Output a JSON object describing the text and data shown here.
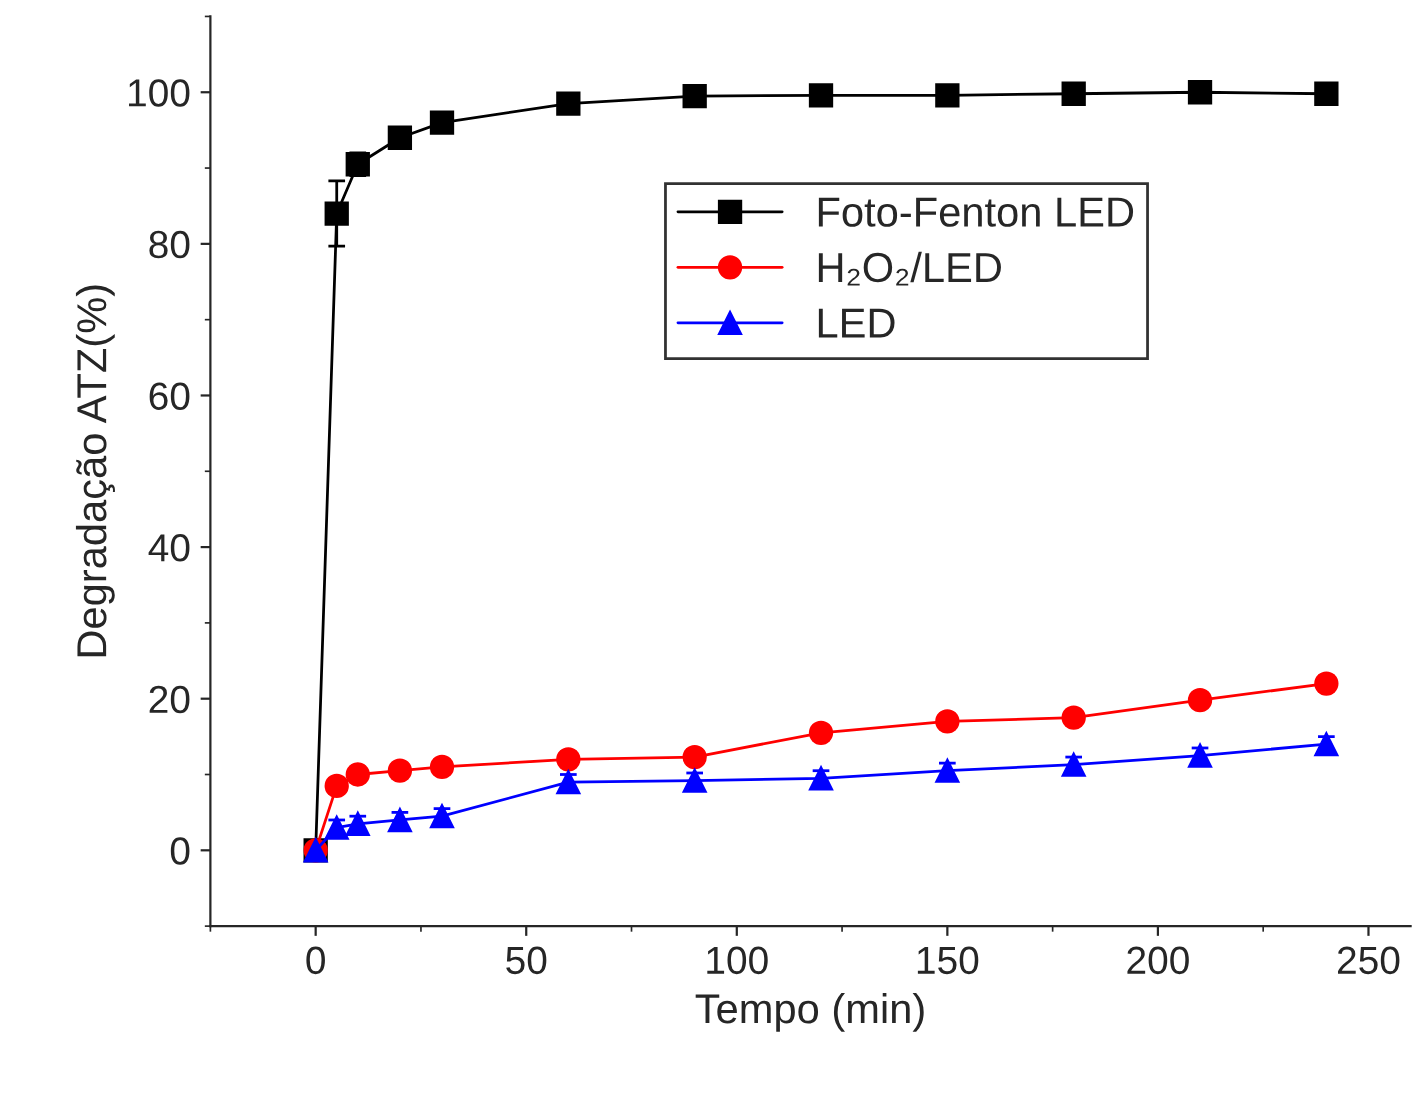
{
  "chart_data": {
    "type": "line",
    "xlabel": "Tempo (min)",
    "ylabel": "Degradação ATZ(%)",
    "x": [
      0,
      5,
      10,
      20,
      30,
      60,
      90,
      120,
      150,
      180,
      210,
      240
    ],
    "series": [
      {
        "name": "Foto-Fenton LED",
        "color": "#000000",
        "marker": "square",
        "values": [
          0,
          84,
          90.5,
          94,
          96,
          98.5,
          99.5,
          99.6,
          99.6,
          99.8,
          100,
          99.8
        ],
        "errors": [
          null,
          4.3,
          1.5,
          1,
          1,
          1,
          1,
          null,
          null,
          null,
          null,
          null
        ]
      },
      {
        "name": "H₂O₂/LED",
        "color": "#ff0000",
        "marker": "circle",
        "values": [
          0,
          8.5,
          10,
          10.5,
          11,
          12,
          12.3,
          15.5,
          17,
          17.5,
          19.8,
          22
        ],
        "errors": [
          null,
          1,
          1,
          1,
          1,
          1,
          1,
          1,
          1,
          1,
          1,
          1
        ]
      },
      {
        "name": "LED",
        "color": "#0000ff",
        "marker": "triangle",
        "values": [
          0,
          3,
          3.5,
          4,
          4.5,
          9,
          9.2,
          9.5,
          10.5,
          11.3,
          12.5,
          14
        ],
        "errors": [
          null,
          1,
          1,
          1,
          1,
          1,
          1,
          1,
          1,
          1,
          1,
          1
        ]
      }
    ],
    "xlim": [
      -25,
      260
    ],
    "ylim": [
      -10,
      110
    ],
    "xticks": [
      0,
      50,
      100,
      150,
      200,
      250
    ],
    "yticks": [
      0,
      20,
      40,
      60,
      80,
      100
    ],
    "grid": false,
    "legend": "center",
    "line_style": "solid"
  }
}
